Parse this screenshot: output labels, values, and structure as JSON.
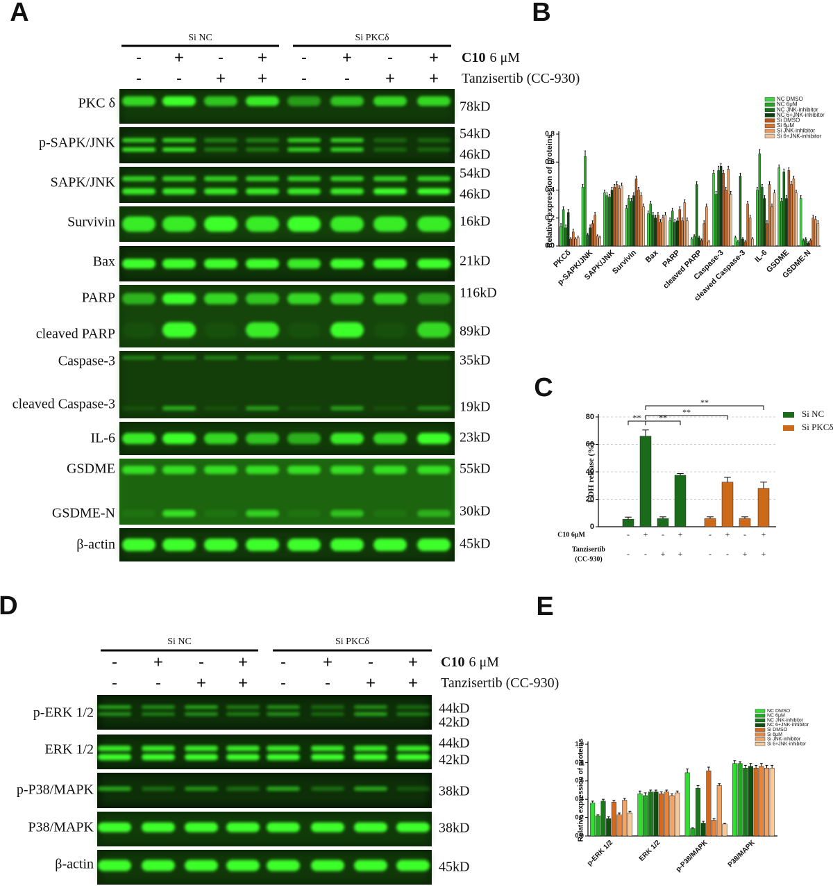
{
  "panel_labels": [
    "A",
    "B",
    "C",
    "D",
    "E"
  ],
  "blots": [
    {
      "groups": [
        "Si NC",
        "Si PKCδ"
      ],
      "conditions": [
        {
          "name": "C10",
          "unit": "6 μM",
          "signs": [
            "-",
            "+",
            "-",
            "+",
            "-",
            "+",
            "-",
            "+"
          ]
        },
        {
          "name": "Tanzisertib (CC-930)",
          "signs": [
            "-",
            "-",
            "+",
            "+",
            "-",
            "-",
            "+",
            "+"
          ]
        }
      ],
      "rows": [
        {
          "labels": [
            "PKC δ"
          ],
          "sizes": [
            "78kD"
          ]
        },
        {
          "labels": [
            "p-SAPK/JNK"
          ],
          "sizes": [
            "54kD",
            "46kD"
          ]
        },
        {
          "labels": [
            "SAPK/JNK"
          ],
          "sizes": [
            "54kD",
            "46kD"
          ]
        },
        {
          "labels": [
            "Survivin"
          ],
          "sizes": [
            "16kD"
          ]
        },
        {
          "labels": [
            "Bax"
          ],
          "sizes": [
            "21kD"
          ]
        },
        {
          "labels": [
            "PARP",
            "cleaved PARP"
          ],
          "sizes": [
            "116kD",
            "89kD"
          ]
        },
        {
          "labels": [
            "Caspase-3",
            "cleaved Caspase-3"
          ],
          "sizes": [
            "35kD",
            "19kD"
          ]
        },
        {
          "labels": [
            "IL-6"
          ],
          "sizes": [
            "23kD"
          ]
        },
        {
          "labels": [
            "GSDME",
            "GSDME-N"
          ],
          "sizes": [
            "55kD",
            "30kD"
          ]
        },
        {
          "labels": [
            "β-actin"
          ],
          "sizes": [
            "45kD"
          ]
        }
      ]
    },
    {
      "groups": [
        "Si NC",
        "Si PKCδ"
      ],
      "conditions": [
        {
          "name": "C10",
          "unit": "6 μM",
          "signs": [
            "-",
            "+",
            "-",
            "+",
            "-",
            "+",
            "-",
            "+"
          ]
        },
        {
          "name": "Tanzisertib (CC-930)",
          "signs": [
            "-",
            "-",
            "+",
            "+",
            "-",
            "-",
            "+",
            "+"
          ]
        }
      ],
      "rows": [
        {
          "labels": [
            "p-ERK 1/2"
          ],
          "sizes": [
            "44kD",
            "42kD"
          ]
        },
        {
          "labels": [
            "ERK 1/2"
          ],
          "sizes": [
            "44kD",
            "42kD"
          ]
        },
        {
          "labels": [
            "p-P38/MAPK"
          ],
          "sizes": [
            "38kD"
          ]
        },
        {
          "labels": [
            "P38/MAPK"
          ],
          "sizes": [
            "38kD"
          ]
        },
        {
          "labels": [
            "β-actin"
          ],
          "sizes": [
            "45kD"
          ]
        }
      ]
    }
  ],
  "chart_data": [
    {
      "type": "bar",
      "y_label": "Relative expression of proteins",
      "categories": [
        "PKCδ",
        "p-SAPK/JNK",
        "SAPK/JNK",
        "Survivin",
        "Bax",
        "PARP",
        "cleaved PARP",
        "Caspase-3",
        "cleaved Caspase-3",
        "IL-6",
        "GSDME",
        "GSDME-N"
      ],
      "ylim": [
        0,
        0.8
      ],
      "yticks": [
        {
          "value": 0,
          "label": "0.0"
        },
        0.2,
        0.4,
        0.6,
        0.8
      ],
      "series": [
        {
          "name": "NC DMSO",
          "color": "#3fd43f",
          "values": [
            0.14,
            0.42,
            0.38,
            0.27,
            0.23,
            0.18,
            0.05,
            0.52,
            0.06,
            0.4,
            0.56,
            0.34
          ],
          "errors": [
            0.02,
            0.02,
            0.02,
            0.02,
            0.02,
            0.02,
            0.01,
            0.02,
            0.01,
            0.02,
            0.02,
            0.02
          ]
        },
        {
          "name": "NC 6μM",
          "color": "#27a327",
          "values": [
            0.26,
            0.64,
            0.36,
            0.34,
            0.3,
            0.25,
            0.07,
            0.37,
            0.03,
            0.66,
            0.32,
            0.04
          ],
          "errors": [
            0.02,
            0.04,
            0.02,
            0.02,
            0.02,
            0.02,
            0.01,
            0.02,
            0.01,
            0.03,
            0.02,
            0.01
          ]
        },
        {
          "name": "NC JNK-inhibitor",
          "color": "#1b6e1b",
          "values": [
            0.13,
            0.08,
            0.35,
            0.32,
            0.22,
            0.17,
            0.44,
            0.54,
            0.5,
            0.42,
            0.53,
            0.05
          ],
          "errors": [
            0.02,
            0.01,
            0.02,
            0.02,
            0.02,
            0.02,
            0.02,
            0.03,
            0.02,
            0.02,
            0.02,
            0.01
          ]
        },
        {
          "name": "NC 6+JNK-inhibitor",
          "color": "#0e3f0e",
          "values": [
            0.24,
            0.13,
            0.4,
            0.36,
            0.2,
            0.18,
            0.06,
            0.57,
            0.05,
            0.34,
            0.34,
            0.02
          ],
          "errors": [
            0.02,
            0.02,
            0.02,
            0.02,
            0.02,
            0.02,
            0.01,
            0.02,
            0.01,
            0.02,
            0.02,
            0.01
          ]
        },
        {
          "name": "Si DMSO",
          "color": "#b9561b",
          "values": [
            0.05,
            0.16,
            0.42,
            0.48,
            0.22,
            0.26,
            0.04,
            0.52,
            0.03,
            0.16,
            0.54,
            0.04
          ],
          "errors": [
            0.01,
            0.02,
            0.02,
            0.02,
            0.02,
            0.02,
            0.01,
            0.02,
            0.01,
            0.02,
            0.02,
            0.01
          ]
        },
        {
          "name": "Si 6μM",
          "color": "#d2742f",
          "values": [
            0.1,
            0.22,
            0.44,
            0.4,
            0.17,
            0.18,
            0.16,
            0.4,
            0.3,
            0.44,
            0.44,
            0.2
          ],
          "errors": [
            0.02,
            0.02,
            0.02,
            0.02,
            0.02,
            0.02,
            0.02,
            0.02,
            0.02,
            0.02,
            0.02,
            0.02
          ]
        },
        {
          "name": "Si JNK-inhibitor",
          "color": "#e89a5f",
          "values": [
            0.05,
            0.07,
            0.41,
            0.36,
            0.2,
            0.31,
            0.28,
            0.55,
            0.2,
            0.28,
            0.48,
            0.19
          ],
          "errors": [
            0.01,
            0.01,
            0.02,
            0.02,
            0.02,
            0.02,
            0.02,
            0.02,
            0.02,
            0.02,
            0.02,
            0.02
          ]
        },
        {
          "name": "Si 6+JNK-inhibitor",
          "color": "#f3c49c",
          "values": [
            0.06,
            0.06,
            0.43,
            0.28,
            0.22,
            0.18,
            0.03,
            0.37,
            0.05,
            0.38,
            0.38,
            0.16
          ],
          "errors": [
            0.01,
            0.01,
            0.02,
            0.02,
            0.02,
            0.02,
            0.01,
            0.02,
            0.01,
            0.02,
            0.02,
            0.02
          ]
        }
      ]
    },
    {
      "type": "bar",
      "y_label": "LDH release (%)",
      "ylim": [
        0,
        80
      ],
      "yticks": [
        0,
        20,
        40,
        60,
        80
      ],
      "grid": true,
      "legend": "upper right",
      "annotations": [
        "**",
        "**",
        "**",
        "**"
      ],
      "series": [
        {
          "name": "Si NC",
          "color": "#1a6b1a",
          "values": [
            5.5,
            66,
            6,
            37.5
          ],
          "errors": [
            1.5,
            4.5,
            1.2,
            1.2
          ]
        },
        {
          "name": "Si PKCδ",
          "color": "#cc6a1a",
          "values": [
            6,
            32.5,
            6,
            28
          ],
          "errors": [
            1.2,
            3.5,
            1.2,
            4.5
          ]
        }
      ],
      "rows": [
        {
          "label": [
            "C10 6μM"
          ],
          "signs": [
            "-",
            "+",
            "-",
            "+",
            "-",
            "+",
            "-",
            "+"
          ]
        },
        {
          "label": [
            "Tanzisertib",
            "(CC-930)"
          ],
          "signs": [
            "-",
            "-",
            "+",
            "+",
            "-",
            "-",
            "+",
            "+"
          ]
        }
      ]
    },
    {
      "type": "bar",
      "y_label": "Relative expression of proteins",
      "categories": [
        "p-ERK 1/2",
        "ERK 1/2",
        "p-P38/MAPK",
        "P38/MAPK"
      ],
      "ylim": [
        0,
        1.0
      ],
      "yticks": [
        {
          "value": 0,
          "label": "0.0"
        },
        0.2,
        0.4,
        0.6,
        0.8,
        {
          "value": 1.0,
          "label": "1.0"
        }
      ],
      "series": [
        {
          "name": "NC DMSO",
          "color": "#33dd33",
          "values": [
            0.36,
            0.46,
            0.69,
            0.79
          ],
          "errors": [
            0.02,
            0.03,
            0.04,
            0.03
          ]
        },
        {
          "name": "NC 6μM",
          "color": "#22aa22",
          "values": [
            0.22,
            0.44,
            0.08,
            0.79
          ],
          "errors": [
            0.01,
            0.03,
            0.01,
            0.02
          ]
        },
        {
          "name": "NC JNK-inhibitor",
          "color": "#1a7a1a",
          "values": [
            0.38,
            0.48,
            0.52,
            0.74
          ],
          "errors": [
            0.02,
            0.02,
            0.03,
            0.03
          ]
        },
        {
          "name": "NC 6+JNK-inhibitor",
          "color": "#0f4f0f",
          "values": [
            0.19,
            0.48,
            0.14,
            0.76
          ],
          "errors": [
            0.02,
            0.02,
            0.02,
            0.03
          ]
        },
        {
          "name": "Si DMSO",
          "color": "#d2691e",
          "values": [
            0.37,
            0.46,
            0.71,
            0.74
          ],
          "errors": [
            0.02,
            0.02,
            0.04,
            0.03
          ]
        },
        {
          "name": "Si 6μM",
          "color": "#e8853a",
          "values": [
            0.23,
            0.48,
            0.17,
            0.76
          ],
          "errors": [
            0.02,
            0.02,
            0.02,
            0.03
          ]
        },
        {
          "name": "Si JNK-inhibitor",
          "color": "#f0a566",
          "values": [
            0.39,
            0.44,
            0.55,
            0.74
          ],
          "errors": [
            0.02,
            0.02,
            0.02,
            0.03
          ]
        },
        {
          "name": "Si 6+JNK-inhibitor",
          "color": "#f7c89a",
          "values": [
            0.25,
            0.47,
            0.13,
            0.74
          ],
          "errors": [
            0.02,
            0.02,
            0.01,
            0.03
          ]
        }
      ]
    }
  ]
}
